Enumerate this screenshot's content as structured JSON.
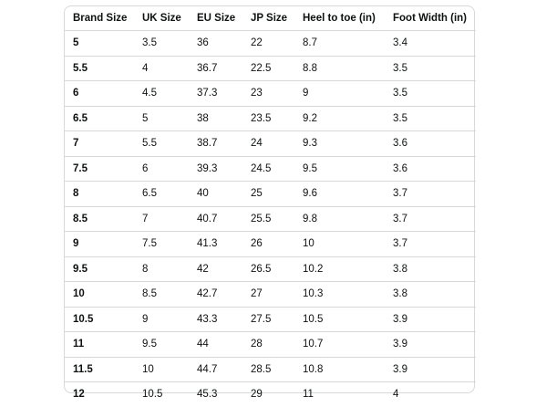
{
  "size_chart": {
    "headers": [
      "Brand Size",
      "UK Size",
      "EU Size",
      "JP Size",
      "Heel to toe (in)",
      "Foot Width (in)"
    ],
    "rows": [
      [
        "5",
        "3.5",
        "36",
        "22",
        "8.7",
        "3.4"
      ],
      [
        "5.5",
        "4",
        "36.7",
        "22.5",
        "8.8",
        "3.5"
      ],
      [
        "6",
        "4.5",
        "37.3",
        "23",
        "9",
        "3.5"
      ],
      [
        "6.5",
        "5",
        "38",
        "23.5",
        "9.2",
        "3.5"
      ],
      [
        "7",
        "5.5",
        "38.7",
        "24",
        "9.3",
        "3.6"
      ],
      [
        "7.5",
        "6",
        "39.3",
        "24.5",
        "9.5",
        "3.6"
      ],
      [
        "8",
        "6.5",
        "40",
        "25",
        "9.6",
        "3.7"
      ],
      [
        "8.5",
        "7",
        "40.7",
        "25.5",
        "9.8",
        "3.7"
      ],
      [
        "9",
        "7.5",
        "41.3",
        "26",
        "10",
        "3.7"
      ],
      [
        "9.5",
        "8",
        "42",
        "26.5",
        "10.2",
        "3.8"
      ],
      [
        "10",
        "8.5",
        "42.7",
        "27",
        "10.3",
        "3.8"
      ],
      [
        "10.5",
        "9",
        "43.3",
        "27.5",
        "10.5",
        "3.9"
      ],
      [
        "11",
        "9.5",
        "44",
        "28",
        "10.7",
        "3.9"
      ],
      [
        "11.5",
        "10",
        "44.7",
        "28.5",
        "10.8",
        "3.9"
      ],
      [
        "12",
        "10.5",
        "45.3",
        "29",
        "11",
        "4"
      ]
    ]
  },
  "colors": {
    "border": "#d5d9d9",
    "text": "#0f1111"
  }
}
